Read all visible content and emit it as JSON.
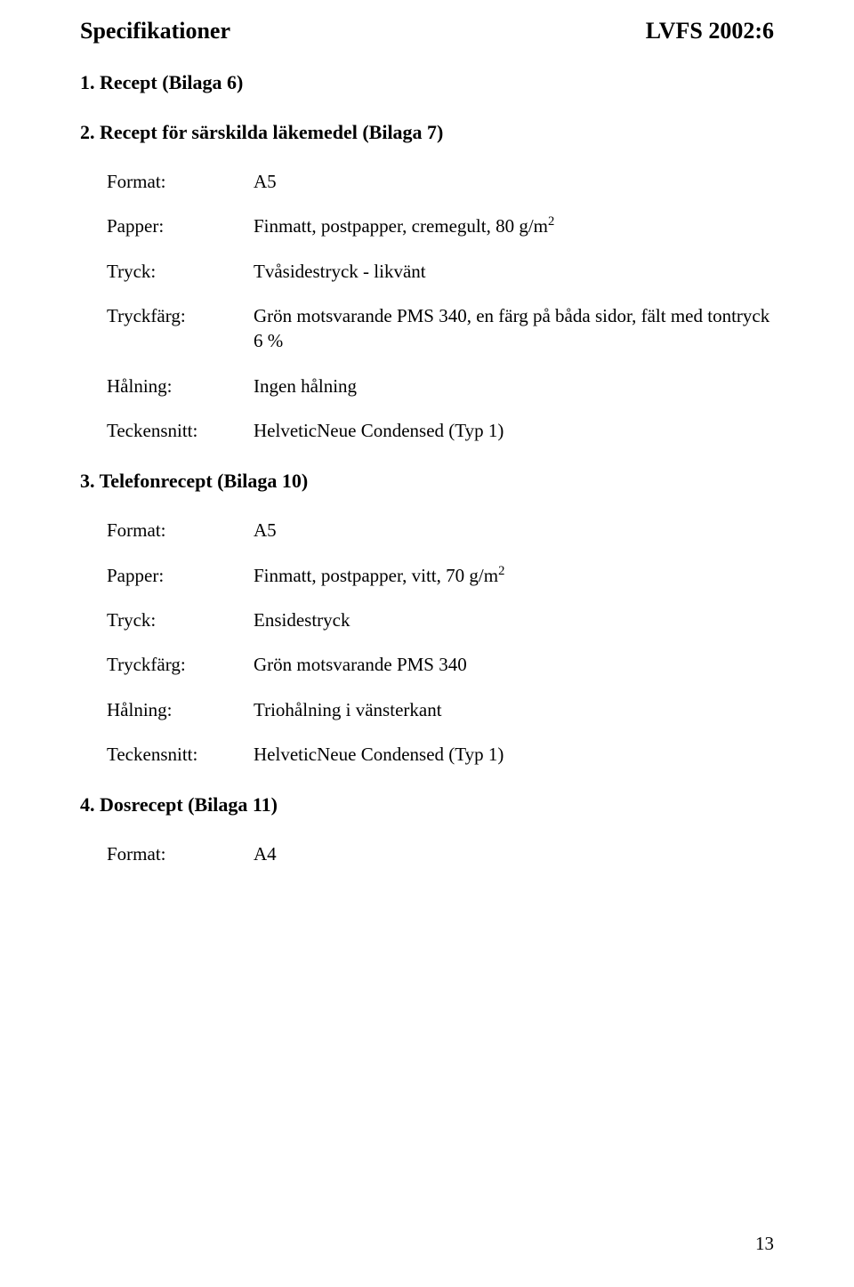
{
  "header": {
    "title": "Specifikationer",
    "docId": "LVFS 2002:6"
  },
  "sections": [
    {
      "heading": "1. Recept (Bilaga 6)"
    },
    {
      "heading": "2. Recept för särskilda läkemedel (Bilaga 7)",
      "rows": [
        {
          "label": "Format:",
          "value": "A5"
        },
        {
          "label": "Papper:",
          "value_html": "Finmatt, postpapper, cremegult, 80 g/m<sup>2</sup>"
        },
        {
          "label": "Tryck:",
          "value": "Tvåsidestryck - likvänt"
        },
        {
          "label": "Tryckfärg:",
          "value": "Grön motsvarande PMS 340, en färg på båda sidor, fält med tontryck 6 %"
        },
        {
          "label": "Hålning:",
          "value": "Ingen hålning"
        },
        {
          "label": "Teckensnitt:",
          "value": "HelveticNeue Condensed (Typ 1)"
        }
      ]
    },
    {
      "heading": "3. Telefonrecept (Bilaga 10)",
      "rows": [
        {
          "label": "Format:",
          "value": "A5"
        },
        {
          "label": "Papper:",
          "value_html": "Finmatt, postpapper, vitt, 70 g/m<sup>2</sup>"
        },
        {
          "label": "Tryck:",
          "value": "Ensidestryck"
        },
        {
          "label": "Tryckfärg:",
          "value": "Grön motsvarande PMS 340"
        },
        {
          "label": "Hålning:",
          "value": "Triohålning i vänsterkant"
        },
        {
          "label": "Teckensnitt:",
          "value": "HelveticNeue Condensed (Typ 1)"
        }
      ]
    },
    {
      "heading": "4. Dosrecept  (Bilaga 11)",
      "rows": [
        {
          "label": "Format:",
          "value": "A4"
        }
      ]
    }
  ],
  "pageNumber": "13"
}
